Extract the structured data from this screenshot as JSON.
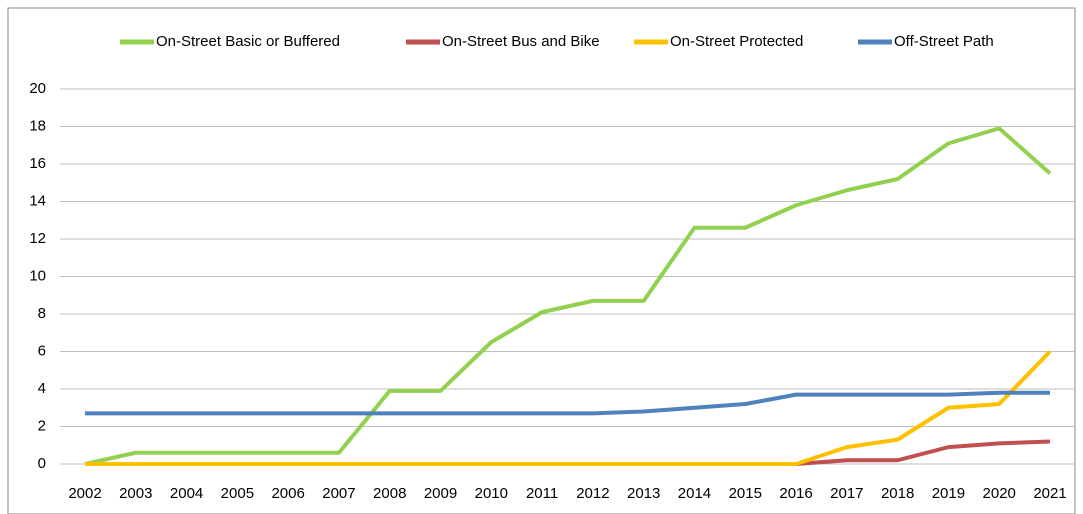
{
  "chart_data": {
    "type": "line",
    "x": [
      "2002",
      "2003",
      "2004",
      "2005",
      "2006",
      "2007",
      "2008",
      "2009",
      "2010",
      "2011",
      "2012",
      "2013",
      "2014",
      "2015",
      "2016",
      "2017",
      "2018",
      "2019",
      "2020",
      "2021"
    ],
    "series": [
      {
        "name": "On-Street Basic or Buffered",
        "color": "#92d050",
        "values": [
          0,
          0.6,
          0.6,
          0.6,
          0.6,
          0.6,
          3.9,
          3.9,
          6.5,
          8.1,
          8.7,
          8.7,
          12.6,
          12.6,
          13.8,
          14.6,
          15.2,
          17.1,
          17.9,
          15.5
        ]
      },
      {
        "name": "On-Street Bus and Bike",
        "color": "#c0504d",
        "values": [
          0,
          0,
          0,
          0,
          0,
          0,
          0,
          0,
          0,
          0,
          0,
          0,
          0,
          0,
          0,
          0.2,
          0.2,
          0.9,
          1.1,
          1.2
        ]
      },
      {
        "name": "On-Street Protected",
        "color": "#ffc000",
        "values": [
          0,
          0,
          0,
          0,
          0,
          0,
          0,
          0,
          0,
          0,
          0,
          0,
          0,
          0,
          0,
          0.9,
          1.3,
          3.0,
          3.2,
          6.0
        ]
      },
      {
        "name": "Off-Street Path",
        "color": "#4f81bd",
        "values": [
          2.7,
          2.7,
          2.7,
          2.7,
          2.7,
          2.7,
          2.7,
          2.7,
          2.7,
          2.7,
          2.7,
          2.8,
          3.0,
          3.2,
          3.7,
          3.7,
          3.7,
          3.7,
          3.8,
          3.8
        ]
      }
    ],
    "ylim": [
      0,
      20
    ],
    "yticks": [
      0,
      2,
      4,
      6,
      8,
      10,
      12,
      14,
      16,
      18,
      20
    ],
    "grid": true,
    "legend": "top"
  }
}
